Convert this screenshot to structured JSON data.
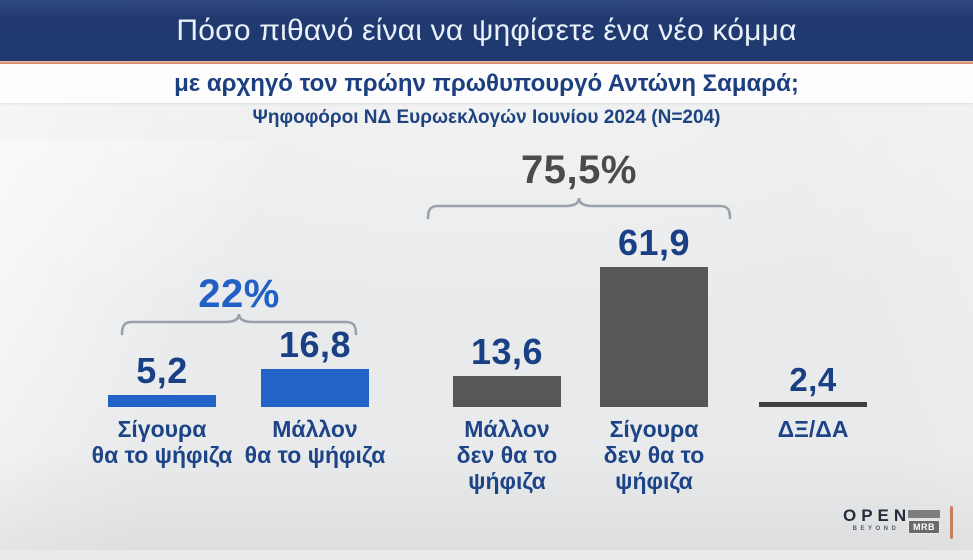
{
  "header": {
    "title": "Πόσο πιθανό είναι να ψηφίσετε ένα νέο κόμμα",
    "strip_title": "με αρχηγό τον πρώην πρωθυπουργό Αντώνη Σαμαρά;"
  },
  "sample_note": "Ψηφοφόροι ΝΔ Ευρωεκλογών Ιουνίου 2024 (N=204)",
  "colors": {
    "header_bg": "#21396f",
    "accent_line": "#cf7f5c",
    "bar_blue": "#2363c8",
    "bar_gray": "#575757",
    "bar_dark_line": "#3f3f3f",
    "navy_text": "#1d4486",
    "group_blue": "#2161c6",
    "group_gray": "#4b4b4b",
    "bracket": "#9aa1ab"
  },
  "chart_data": {
    "type": "bar",
    "orientation": "vertical",
    "title": "Πόσο πιθανό είναι να ψηφίσετε ένα νέο κόμμα",
    "subtitle": "με αρχηγό τον πρώην πρωθυπουργό Αντώνη Σαμαρά;",
    "sample": "Ψηφοφόροι ΝΔ Ευρωεκλογών Ιουνίου 2024 (N=204)",
    "categories": [
      "Σίγουρα\nθα το ψήφιζα",
      "Μάλλον\nθα το ψήφιζα",
      "Μάλλον\nδεν θα το\nψήφιζα",
      "Σίγουρα\nδεν θα το\nψήφιζα",
      "ΔΞ/ΔΑ"
    ],
    "values": [
      5.2,
      16.8,
      13.6,
      61.9,
      2.4
    ],
    "value_labels": [
      "5,2",
      "16,8",
      "13,6",
      "61,9",
      "2,4"
    ],
    "bar_colors": [
      "#2363c8",
      "#2363c8",
      "#575757",
      "#575757",
      "#3f3f3f"
    ],
    "group_annotations": [
      {
        "label": "22%",
        "from": 0,
        "to": 1,
        "color": "#2161c6"
      },
      {
        "label": "75,5%",
        "from": 2,
        "to": 3,
        "color": "#4b4b4b"
      }
    ],
    "ylim": [
      0,
      70
    ],
    "grid": false,
    "legend": false
  },
  "logos": {
    "open_label": "OPEN",
    "open_sub_label": "BEYOND",
    "mrb_label": "MRB"
  }
}
